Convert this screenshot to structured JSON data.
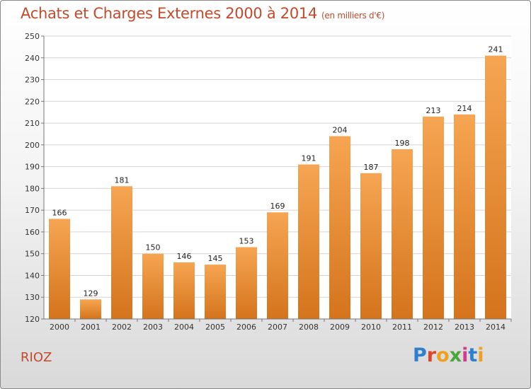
{
  "chart_data": {
    "type": "bar",
    "title": "Achats et Charges Externes 2000 à 2014",
    "subtitle": "(en milliers d'€)",
    "categories": [
      "2000",
      "2001",
      "2002",
      "2003",
      "2004",
      "2005",
      "2006",
      "2007",
      "2008",
      "2009",
      "2010",
      "2011",
      "2012",
      "2013",
      "2014"
    ],
    "values": [
      166,
      129,
      181,
      150,
      146,
      145,
      153,
      169,
      191,
      204,
      187,
      198,
      213,
      214,
      241
    ],
    "ylim": [
      120,
      250
    ],
    "yticks": [
      120,
      130,
      140,
      150,
      160,
      170,
      180,
      190,
      200,
      210,
      220,
      230,
      240,
      250
    ],
    "grid": true,
    "bar_color": "#f0903a",
    "bar_color_dark": "#d0701c"
  },
  "footer": {
    "place": "RIOZ",
    "brand": "Proxiti",
    "brand_colors": [
      "#2f7fd0",
      "#e0452a",
      "#f0a020",
      "#4aa63a",
      "#d23c8c",
      "#2f7fd0",
      "#f0a020"
    ]
  }
}
